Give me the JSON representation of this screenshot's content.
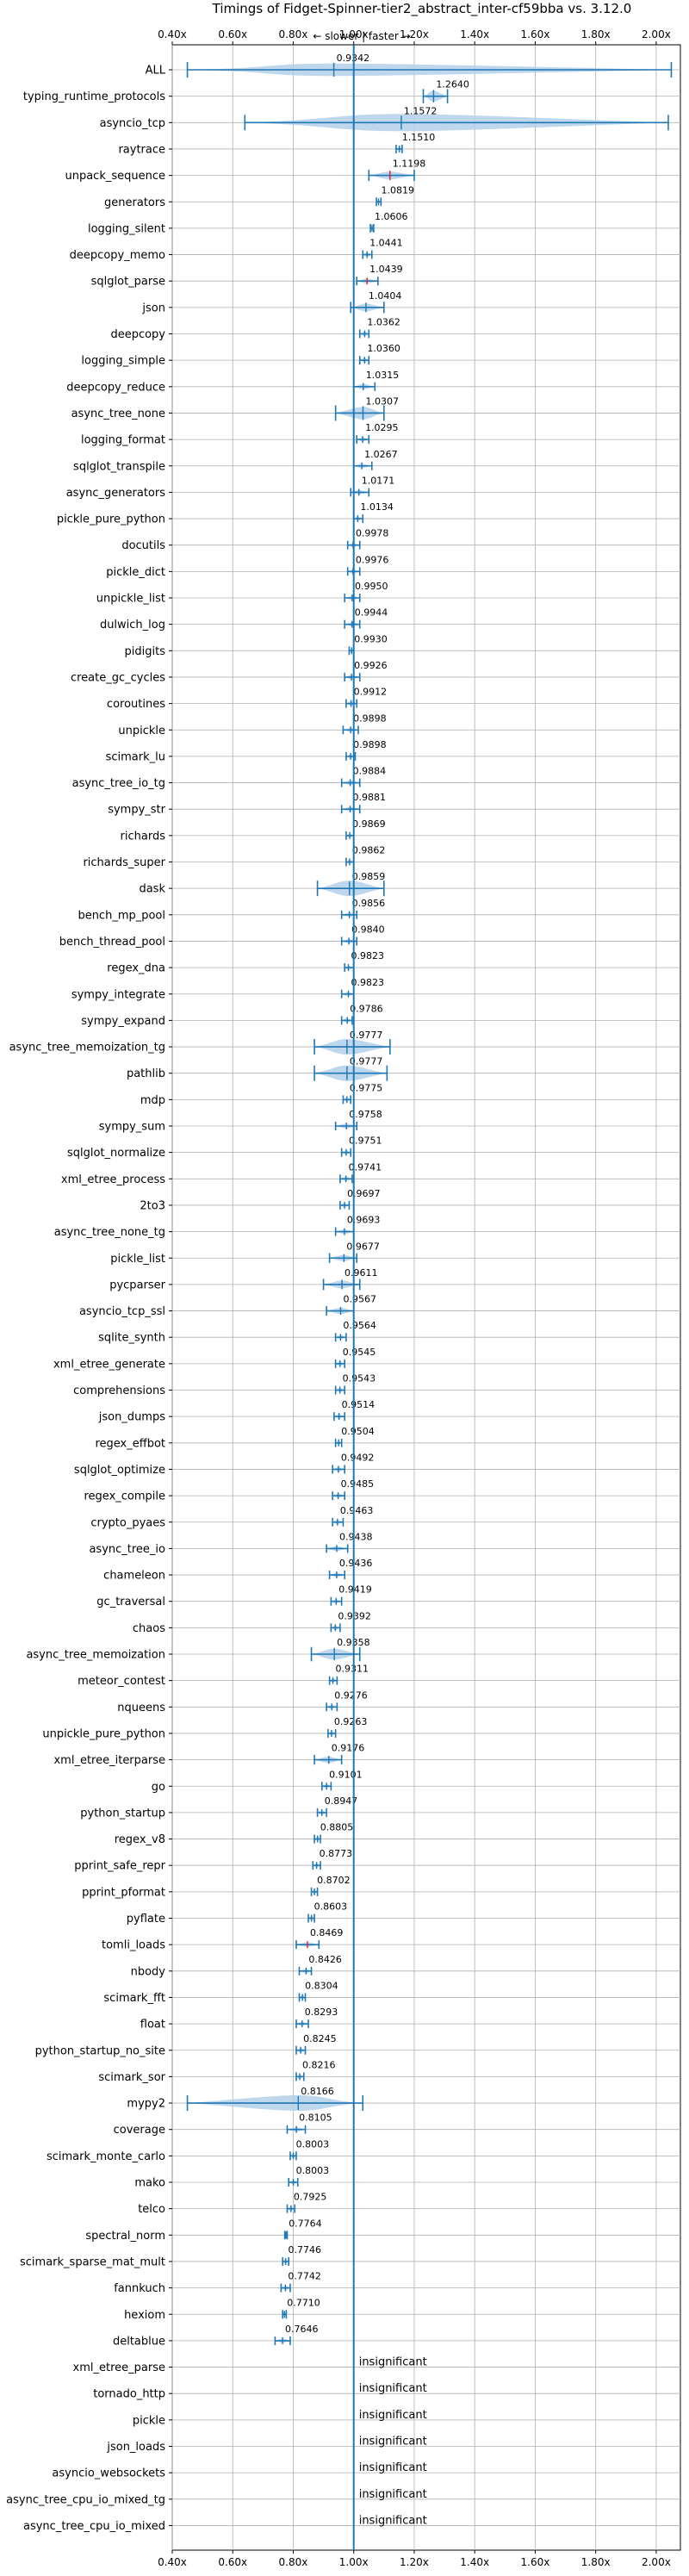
{
  "chart_data": {
    "type": "violin",
    "title": "Timings of Fidget-Spinner-tier2_abstract_inter-cf59bba vs. 3.12.0",
    "annotation": "← slower | faster →",
    "xlim": [
      0.4,
      2.08
    ],
    "xticks": [
      "0.40x",
      "0.60x",
      "0.80x",
      "1.00x",
      "1.20x",
      "1.40x",
      "1.60x",
      "1.80x",
      "2.00x"
    ],
    "grid": true,
    "reference_line": 1.0,
    "colors": {
      "body": "#b3d0e9",
      "line": "#1f77b4",
      "median": "#d62728",
      "ref": "#1f77b4"
    },
    "rows": [
      {
        "name": "ALL",
        "value": 0.9342,
        "label": "0.9342",
        "min": 0.45,
        "max": 2.05,
        "width": 0.08
      },
      {
        "name": "typing_runtime_protocols",
        "value": 1.264,
        "label": "1.2640",
        "min": 1.23,
        "max": 1.31,
        "width": 0.07
      },
      {
        "name": "asyncio_tcp",
        "value": 1.1572,
        "label": "1.1572",
        "min": 0.64,
        "max": 2.04,
        "width": 0.52
      },
      {
        "name": "raytrace",
        "value": 1.151,
        "label": "1.1510",
        "min": 1.14,
        "max": 1.16,
        "width": 0.012
      },
      {
        "name": "unpack_sequence",
        "value": 1.1198,
        "label": "1.1198",
        "min": 1.05,
        "max": 1.2,
        "width": 0.05,
        "red": true
      },
      {
        "name": "generators",
        "value": 1.0819,
        "label": "1.0819",
        "min": 1.075,
        "max": 1.09,
        "width": 0.008
      },
      {
        "name": "logging_silent",
        "value": 1.0606,
        "label": "1.0606",
        "min": 1.055,
        "max": 1.066,
        "width": 0.006
      },
      {
        "name": "deepcopy_memo",
        "value": 1.0441,
        "label": "1.0441",
        "min": 1.03,
        "max": 1.06,
        "width": 0.015
      },
      {
        "name": "sqlglot_parse",
        "value": 1.0439,
        "label": "1.0439",
        "min": 1.01,
        "max": 1.08,
        "width": 0.03,
        "red": true
      },
      {
        "name": "json",
        "value": 1.0404,
        "label": "1.0404",
        "min": 0.99,
        "max": 1.1,
        "width": 0.05
      },
      {
        "name": "deepcopy",
        "value": 1.0362,
        "label": "1.0362",
        "min": 1.02,
        "max": 1.05,
        "width": 0.015
      },
      {
        "name": "logging_simple",
        "value": 1.036,
        "label": "1.0360",
        "min": 1.02,
        "max": 1.05,
        "width": 0.015
      },
      {
        "name": "deepcopy_reduce",
        "value": 1.0315,
        "label": "1.0315",
        "min": 1.0,
        "max": 1.07,
        "width": 0.035
      },
      {
        "name": "async_tree_none",
        "value": 1.0307,
        "label": "1.0307",
        "min": 0.94,
        "max": 1.1,
        "width": 0.08
      },
      {
        "name": "logging_format",
        "value": 1.0295,
        "label": "1.0295",
        "min": 1.01,
        "max": 1.05,
        "width": 0.015
      },
      {
        "name": "sqlglot_transpile",
        "value": 1.0267,
        "label": "1.0267",
        "min": 1.0,
        "max": 1.06,
        "width": 0.025
      },
      {
        "name": "async_generators",
        "value": 1.0171,
        "label": "1.0171",
        "min": 0.99,
        "max": 1.05,
        "width": 0.025
      },
      {
        "name": "pickle_pure_python",
        "value": 1.0134,
        "label": "1.0134",
        "min": 1.0,
        "max": 1.03,
        "width": 0.012
      },
      {
        "name": "docutils",
        "value": 0.9978,
        "label": "0.9978",
        "min": 0.98,
        "max": 1.02,
        "width": 0.015
      },
      {
        "name": "pickle_dict",
        "value": 0.9976,
        "label": "0.9976",
        "min": 0.98,
        "max": 1.02,
        "width": 0.015
      },
      {
        "name": "unpickle_list",
        "value": 0.995,
        "label": "0.9950",
        "min": 0.97,
        "max": 1.02,
        "width": 0.02
      },
      {
        "name": "dulwich_log",
        "value": 0.9944,
        "label": "0.9944",
        "min": 0.97,
        "max": 1.02,
        "width": 0.02
      },
      {
        "name": "pidigits",
        "value": 0.993,
        "label": "0.9930",
        "min": 0.985,
        "max": 1.0,
        "width": 0.006
      },
      {
        "name": "create_gc_cycles",
        "value": 0.9926,
        "label": "0.9926",
        "min": 0.97,
        "max": 1.02,
        "width": 0.02
      },
      {
        "name": "coroutines",
        "value": 0.9912,
        "label": "0.9912",
        "min": 0.975,
        "max": 1.01,
        "width": 0.012
      },
      {
        "name": "unpickle",
        "value": 0.9898,
        "label": "0.9898",
        "min": 0.965,
        "max": 1.015,
        "width": 0.02
      },
      {
        "name": "scimark_lu",
        "value": 0.9898,
        "label": "0.9898",
        "min": 0.975,
        "max": 1.005,
        "width": 0.012
      },
      {
        "name": "async_tree_io_tg",
        "value": 0.9884,
        "label": "0.9884",
        "min": 0.96,
        "max": 1.02,
        "width": 0.025
      },
      {
        "name": "sympy_str",
        "value": 0.9881,
        "label": "0.9881",
        "min": 0.96,
        "max": 1.02,
        "width": 0.025
      },
      {
        "name": "richards",
        "value": 0.9869,
        "label": "0.9869",
        "min": 0.975,
        "max": 1.0,
        "width": 0.01
      },
      {
        "name": "richards_super",
        "value": 0.9862,
        "label": "0.9862",
        "min": 0.975,
        "max": 1.0,
        "width": 0.01
      },
      {
        "name": "dask",
        "value": 0.9859,
        "label": "0.9859",
        "min": 0.88,
        "max": 1.1,
        "width": 0.1
      },
      {
        "name": "bench_mp_pool",
        "value": 0.9856,
        "label": "0.9856",
        "min": 0.96,
        "max": 1.01,
        "width": 0.02
      },
      {
        "name": "bench_thread_pool",
        "value": 0.984,
        "label": "0.9840",
        "min": 0.96,
        "max": 1.01,
        "width": 0.02
      },
      {
        "name": "regex_dna",
        "value": 0.9823,
        "label": "0.9823",
        "min": 0.97,
        "max": 1.0,
        "width": 0.01
      },
      {
        "name": "sympy_integrate",
        "value": 0.9823,
        "label": "0.9823",
        "min": 0.96,
        "max": 1.0,
        "width": 0.018
      },
      {
        "name": "sympy_expand",
        "value": 0.9786,
        "label": "0.9786",
        "min": 0.96,
        "max": 0.995,
        "width": 0.015
      },
      {
        "name": "async_tree_memoization_tg",
        "value": 0.9777,
        "label": "0.9777",
        "min": 0.87,
        "max": 1.12,
        "width": 0.1
      },
      {
        "name": "pathlib",
        "value": 0.9777,
        "label": "0.9777",
        "min": 0.87,
        "max": 1.11,
        "width": 0.1
      },
      {
        "name": "mdp",
        "value": 0.9775,
        "label": "0.9775",
        "min": 0.965,
        "max": 0.99,
        "width": 0.01
      },
      {
        "name": "sympy_sum",
        "value": 0.9758,
        "label": "0.9758",
        "min": 0.94,
        "max": 1.01,
        "width": 0.03
      },
      {
        "name": "sqlglot_normalize",
        "value": 0.9751,
        "label": "0.9751",
        "min": 0.96,
        "max": 0.99,
        "width": 0.012
      },
      {
        "name": "xml_etree_process",
        "value": 0.9741,
        "label": "0.9741",
        "min": 0.955,
        "max": 0.995,
        "width": 0.015
      },
      {
        "name": "2to3",
        "value": 0.9697,
        "label": "0.9697",
        "min": 0.955,
        "max": 0.985,
        "width": 0.012
      },
      {
        "name": "async_tree_none_tg",
        "value": 0.9693,
        "label": "0.9693",
        "min": 0.94,
        "max": 1.0,
        "width": 0.025
      },
      {
        "name": "pickle_list",
        "value": 0.9677,
        "label": "0.9677",
        "min": 0.92,
        "max": 1.01,
        "width": 0.04
      },
      {
        "name": "pycparser",
        "value": 0.9611,
        "label": "0.9611",
        "min": 0.9,
        "max": 1.02,
        "width": 0.05
      },
      {
        "name": "asyncio_tcp_ssl",
        "value": 0.9567,
        "label": "0.9567",
        "min": 0.91,
        "max": 1.0,
        "width": 0.04
      },
      {
        "name": "sqlite_synth",
        "value": 0.9564,
        "label": "0.9564",
        "min": 0.94,
        "max": 0.975,
        "width": 0.015
      },
      {
        "name": "xml_etree_generate",
        "value": 0.9545,
        "label": "0.9545",
        "min": 0.94,
        "max": 0.97,
        "width": 0.01
      },
      {
        "name": "comprehensions",
        "value": 0.9543,
        "label": "0.9543",
        "min": 0.94,
        "max": 0.97,
        "width": 0.01
      },
      {
        "name": "json_dumps",
        "value": 0.9514,
        "label": "0.9514",
        "min": 0.935,
        "max": 0.97,
        "width": 0.012
      },
      {
        "name": "regex_effbot",
        "value": 0.9504,
        "label": "0.9504",
        "min": 0.94,
        "max": 0.96,
        "width": 0.008
      },
      {
        "name": "sqlglot_optimize",
        "value": 0.9492,
        "label": "0.9492",
        "min": 0.93,
        "max": 0.97,
        "width": 0.015
      },
      {
        "name": "regex_compile",
        "value": 0.9485,
        "label": "0.9485",
        "min": 0.93,
        "max": 0.97,
        "width": 0.015
      },
      {
        "name": "crypto_pyaes",
        "value": 0.9463,
        "label": "0.9463",
        "min": 0.93,
        "max": 0.965,
        "width": 0.012
      },
      {
        "name": "async_tree_io",
        "value": 0.9438,
        "label": "0.9438",
        "min": 0.91,
        "max": 0.98,
        "width": 0.03
      },
      {
        "name": "chameleon",
        "value": 0.9436,
        "label": "0.9436",
        "min": 0.92,
        "max": 0.97,
        "width": 0.02
      },
      {
        "name": "gc_traversal",
        "value": 0.9419,
        "label": "0.9419",
        "min": 0.925,
        "max": 0.96,
        "width": 0.012
      },
      {
        "name": "chaos",
        "value": 0.9392,
        "label": "0.9392",
        "min": 0.925,
        "max": 0.955,
        "width": 0.01
      },
      {
        "name": "async_tree_memoization",
        "value": 0.9358,
        "label": "0.9358",
        "min": 0.86,
        "max": 1.02,
        "width": 0.07
      },
      {
        "name": "meteor_contest",
        "value": 0.9311,
        "label": "0.9311",
        "min": 0.92,
        "max": 0.945,
        "width": 0.01
      },
      {
        "name": "nqueens",
        "value": 0.9276,
        "label": "0.9276",
        "min": 0.91,
        "max": 0.945,
        "width": 0.012
      },
      {
        "name": "unpickle_pure_python",
        "value": 0.9263,
        "label": "0.9263",
        "min": 0.915,
        "max": 0.94,
        "width": 0.01
      },
      {
        "name": "xml_etree_iterparse",
        "value": 0.9176,
        "label": "0.9176",
        "min": 0.87,
        "max": 0.96,
        "width": 0.04
      },
      {
        "name": "go",
        "value": 0.9101,
        "label": "0.9101",
        "min": 0.895,
        "max": 0.925,
        "width": 0.012
      },
      {
        "name": "python_startup",
        "value": 0.8947,
        "label": "0.8947",
        "min": 0.88,
        "max": 0.91,
        "width": 0.012
      },
      {
        "name": "regex_v8",
        "value": 0.8805,
        "label": "0.8805",
        "min": 0.87,
        "max": 0.89,
        "width": 0.008
      },
      {
        "name": "pprint_safe_repr",
        "value": 0.8773,
        "label": "0.8773",
        "min": 0.865,
        "max": 0.89,
        "width": 0.01
      },
      {
        "name": "pprint_pformat",
        "value": 0.8702,
        "label": "0.8702",
        "min": 0.86,
        "max": 0.88,
        "width": 0.008
      },
      {
        "name": "pyflate",
        "value": 0.8603,
        "label": "0.8603",
        "min": 0.85,
        "max": 0.87,
        "width": 0.008
      },
      {
        "name": "tomli_loads",
        "value": 0.8469,
        "label": "0.8469",
        "min": 0.81,
        "max": 0.885,
        "width": 0.03,
        "red": true
      },
      {
        "name": "nbody",
        "value": 0.8426,
        "label": "0.8426",
        "min": 0.82,
        "max": 0.86,
        "width": 0.015
      },
      {
        "name": "scimark_fft",
        "value": 0.8304,
        "label": "0.8304",
        "min": 0.82,
        "max": 0.84,
        "width": 0.008
      },
      {
        "name": "float",
        "value": 0.8293,
        "label": "0.8293",
        "min": 0.81,
        "max": 0.85,
        "width": 0.015
      },
      {
        "name": "python_startup_no_site",
        "value": 0.8245,
        "label": "0.8245",
        "min": 0.81,
        "max": 0.84,
        "width": 0.012
      },
      {
        "name": "scimark_sor",
        "value": 0.8216,
        "label": "0.8216",
        "min": 0.81,
        "max": 0.835,
        "width": 0.01
      },
      {
        "name": "mypy2",
        "value": 0.8166,
        "label": "0.8166",
        "min": 0.45,
        "max": 1.03,
        "width": 0.1
      },
      {
        "name": "coverage",
        "value": 0.8105,
        "label": "0.8105",
        "min": 0.78,
        "max": 0.84,
        "width": 0.02
      },
      {
        "name": "scimark_monte_carlo",
        "value": 0.8003,
        "label": "0.8003",
        "min": 0.79,
        "max": 0.81,
        "width": 0.008
      },
      {
        "name": "mako",
        "value": 0.8003,
        "label": "0.8003",
        "min": 0.785,
        "max": 0.815,
        "width": 0.012
      },
      {
        "name": "telco",
        "value": 0.7925,
        "label": "0.7925",
        "min": 0.78,
        "max": 0.805,
        "width": 0.01
      },
      {
        "name": "spectral_norm",
        "value": 0.7764,
        "label": "0.7764",
        "min": 0.772,
        "max": 0.78,
        "width": 0.004
      },
      {
        "name": "scimark_sparse_mat_mult",
        "value": 0.7746,
        "label": "0.7746",
        "min": 0.765,
        "max": 0.785,
        "width": 0.008
      },
      {
        "name": "fannkuch",
        "value": 0.7742,
        "label": "0.7742",
        "min": 0.76,
        "max": 0.79,
        "width": 0.01
      },
      {
        "name": "hexiom",
        "value": 0.771,
        "label": "0.7710",
        "min": 0.765,
        "max": 0.777,
        "width": 0.005
      },
      {
        "name": "deltablue",
        "value": 0.7646,
        "label": "0.7646",
        "min": 0.74,
        "max": 0.79,
        "width": 0.012
      },
      {
        "name": "xml_etree_parse",
        "insignificant": true,
        "label": "insignificant"
      },
      {
        "name": "tornado_http",
        "insignificant": true,
        "label": "insignificant"
      },
      {
        "name": "pickle",
        "insignificant": true,
        "label": "insignificant"
      },
      {
        "name": "json_loads",
        "insignificant": true,
        "label": "insignificant"
      },
      {
        "name": "asyncio_websockets",
        "insignificant": true,
        "label": "insignificant"
      },
      {
        "name": "async_tree_cpu_io_mixed_tg",
        "insignificant": true,
        "label": "insignificant"
      },
      {
        "name": "async_tree_cpu_io_mixed",
        "insignificant": true,
        "label": "insignificant"
      }
    ]
  }
}
